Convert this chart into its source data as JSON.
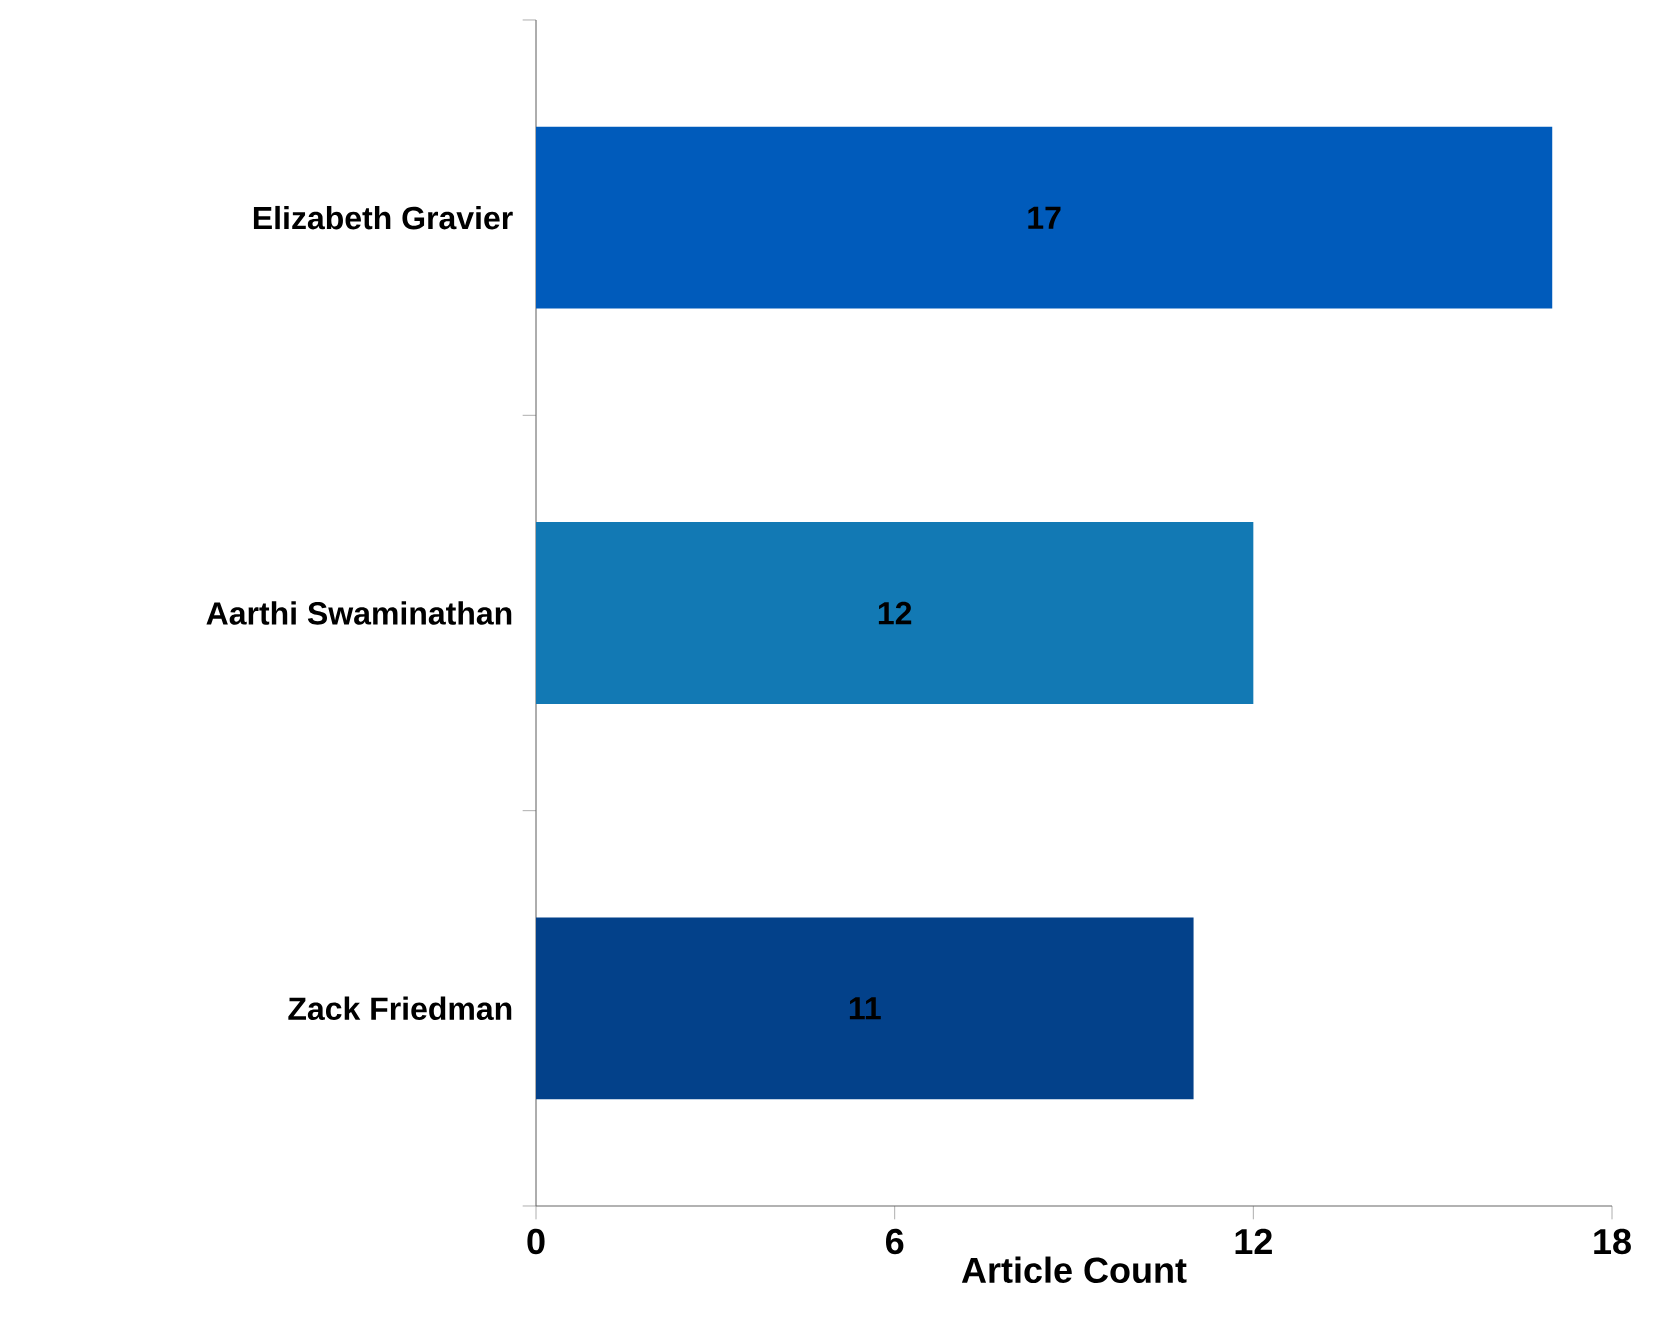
{
  "chart_data": {
    "type": "bar",
    "orientation": "horizontal",
    "xlabel": "Article Count",
    "categories": [
      "Elizabeth Gravier",
      "Aarthi Swaminathan",
      "Zack Friedman"
    ],
    "values": [
      17,
      12,
      11
    ],
    "colors": [
      "#005bbb",
      "#1279b4",
      "#03418a"
    ],
    "xlim": [
      0,
      18
    ],
    "xticks": [
      0,
      6,
      12,
      18
    ],
    "data_labels": true
  }
}
